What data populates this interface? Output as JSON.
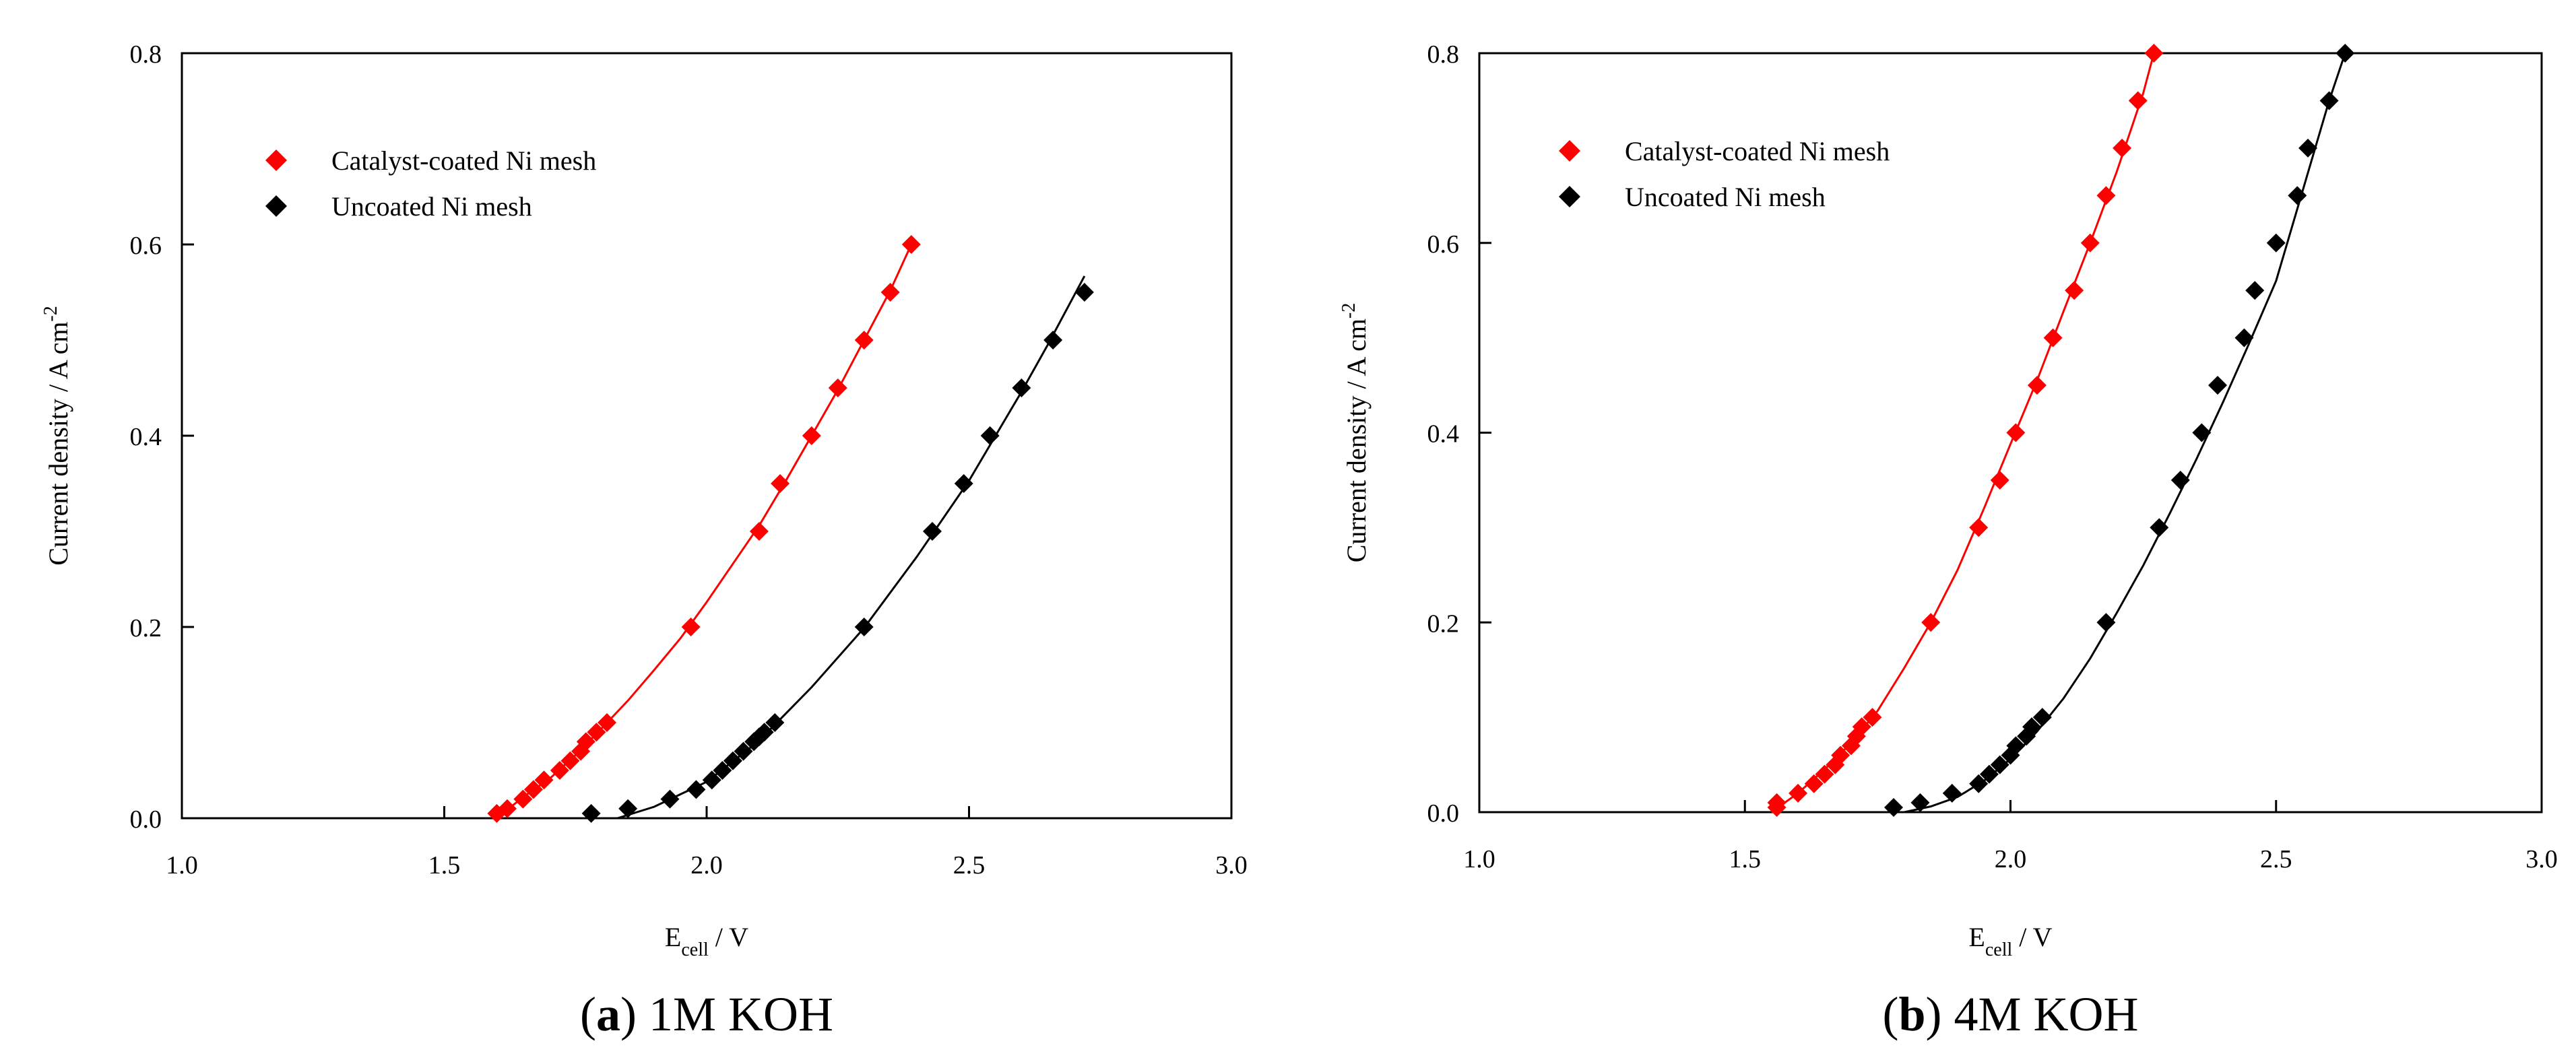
{
  "chart_data": [
    {
      "type": "scatter",
      "panel_letter": "a",
      "caption": "1M KOH",
      "xlabel_main": "E",
      "xlabel_sub": "cell",
      "xlabel_unit": " / V",
      "ylabel_main": "Current density / A cm",
      "ylabel_sup": "-2",
      "xlim": [
        1.0,
        3.0
      ],
      "ylim": [
        0.0,
        0.8
      ],
      "xticks": [
        "1.0",
        "1.5",
        "2.0",
        "2.5",
        "3.0"
      ],
      "yticks": [
        "0.0",
        "0.2",
        "0.4",
        "0.6",
        "0.8"
      ],
      "grid": false,
      "legend_position": "top-left",
      "series": [
        {
          "name": "Catalyst-coated Ni mesh",
          "color": "#ff0000",
          "marker": "diamond",
          "x": [
            1.6,
            1.62,
            1.65,
            1.67,
            1.69,
            1.72,
            1.74,
            1.76,
            1.77,
            1.79,
            1.81,
            1.97,
            2.1,
            2.14,
            2.2,
            2.25,
            2.3,
            2.35,
            2.39
          ],
          "y": [
            0.005,
            0.01,
            0.02,
            0.03,
            0.04,
            0.05,
            0.06,
            0.07,
            0.08,
            0.09,
            0.1,
            0.2,
            0.3,
            0.35,
            0.4,
            0.45,
            0.5,
            0.55,
            0.6
          ],
          "fit_x": [
            1.6,
            1.65,
            1.7,
            1.75,
            1.8,
            1.85,
            1.9,
            1.95,
            2.0,
            2.05,
            2.1,
            2.15,
            2.2,
            2.25,
            2.3,
            2.35,
            2.39
          ],
          "fit_y": [
            0.0,
            0.022,
            0.041,
            0.066,
            0.094,
            0.123,
            0.155,
            0.188,
            0.226,
            0.266,
            0.306,
            0.352,
            0.4,
            0.448,
            0.5,
            0.552,
            0.6
          ]
        },
        {
          "name": "Uncoated Ni mesh",
          "color": "#000000",
          "marker": "diamond",
          "x": [
            1.78,
            1.85,
            1.93,
            1.98,
            2.01,
            2.03,
            2.05,
            2.07,
            2.09,
            2.1,
            2.11,
            2.13,
            2.3,
            2.43,
            2.49,
            2.54,
            2.6,
            2.66,
            2.72
          ],
          "y": [
            0.005,
            0.01,
            0.02,
            0.03,
            0.04,
            0.05,
            0.06,
            0.07,
            0.08,
            0.085,
            0.09,
            0.1,
            0.2,
            0.3,
            0.35,
            0.4,
            0.45,
            0.5,
            0.55
          ],
          "fit_x": [
            1.83,
            1.9,
            2.0,
            2.1,
            2.2,
            2.3,
            2.4,
            2.5,
            2.6,
            2.65,
            2.72
          ],
          "fit_y": [
            0.0,
            0.012,
            0.038,
            0.081,
            0.137,
            0.199,
            0.273,
            0.353,
            0.446,
            0.495,
            0.567
          ]
        }
      ]
    },
    {
      "type": "scatter",
      "panel_letter": "b",
      "caption": "4M KOH",
      "xlabel_main": "E",
      "xlabel_sub": "cell",
      "xlabel_unit": " / V",
      "ylabel_main": "Current density / A cm",
      "ylabel_sup": "-2",
      "xlim": [
        1.0,
        3.0
      ],
      "ylim": [
        0.0,
        0.8
      ],
      "xticks": [
        "1.0",
        "1.5",
        "2.0",
        "2.5",
        "3.0"
      ],
      "yticks": [
        "0.0",
        "0.2",
        "0.4",
        "0.6",
        "0.8"
      ],
      "grid": false,
      "legend_position": "top-left",
      "series": [
        {
          "name": "Catalyst-coated Ni mesh",
          "color": "#ff0000",
          "marker": "diamond",
          "x": [
            1.56,
            1.56,
            1.6,
            1.63,
            1.65,
            1.67,
            1.68,
            1.7,
            1.71,
            1.72,
            1.74,
            1.85,
            1.94,
            1.98,
            2.01,
            2.05,
            2.08,
            2.12,
            2.15,
            2.18,
            2.21,
            2.24,
            2.27
          ],
          "y": [
            0.005,
            0.01,
            0.02,
            0.03,
            0.04,
            0.05,
            0.06,
            0.07,
            0.08,
            0.09,
            0.1,
            0.2,
            0.3,
            0.35,
            0.4,
            0.45,
            0.5,
            0.55,
            0.6,
            0.65,
            0.7,
            0.75,
            0.8
          ],
          "fit_x": [
            1.55,
            1.6,
            1.65,
            1.7,
            1.75,
            1.8,
            1.85,
            1.9,
            1.95,
            2.0,
            2.05,
            2.1,
            2.15,
            2.2,
            2.25,
            2.27
          ],
          "fit_y": [
            0.0,
            0.02,
            0.045,
            0.073,
            0.107,
            0.152,
            0.2,
            0.255,
            0.32,
            0.388,
            0.455,
            0.528,
            0.6,
            0.675,
            0.758,
            0.8
          ]
        },
        {
          "name": "Uncoated Ni mesh",
          "color": "#000000",
          "marker": "diamond",
          "x": [
            1.78,
            1.83,
            1.89,
            1.94,
            1.96,
            1.98,
            2.0,
            2.01,
            2.03,
            2.04,
            2.06,
            2.18,
            2.28,
            2.32,
            2.36,
            2.39,
            2.44,
            2.46,
            2.5,
            2.54,
            2.56,
            2.6,
            2.63
          ],
          "y": [
            0.005,
            0.01,
            0.02,
            0.03,
            0.04,
            0.05,
            0.06,
            0.07,
            0.08,
            0.09,
            0.1,
            0.2,
            0.3,
            0.35,
            0.4,
            0.45,
            0.5,
            0.55,
            0.6,
            0.65,
            0.7,
            0.75,
            0.8
          ],
          "fit_x": [
            1.8,
            1.85,
            1.9,
            1.95,
            2.0,
            2.05,
            2.1,
            2.15,
            2.2,
            2.25,
            2.3,
            2.35,
            2.4,
            2.45,
            2.5,
            2.55,
            2.6,
            2.63
          ],
          "fit_y": [
            0.0,
            0.006,
            0.016,
            0.033,
            0.056,
            0.085,
            0.12,
            0.162,
            0.21,
            0.26,
            0.315,
            0.372,
            0.432,
            0.495,
            0.56,
            0.655,
            0.75,
            0.8
          ]
        }
      ]
    }
  ]
}
